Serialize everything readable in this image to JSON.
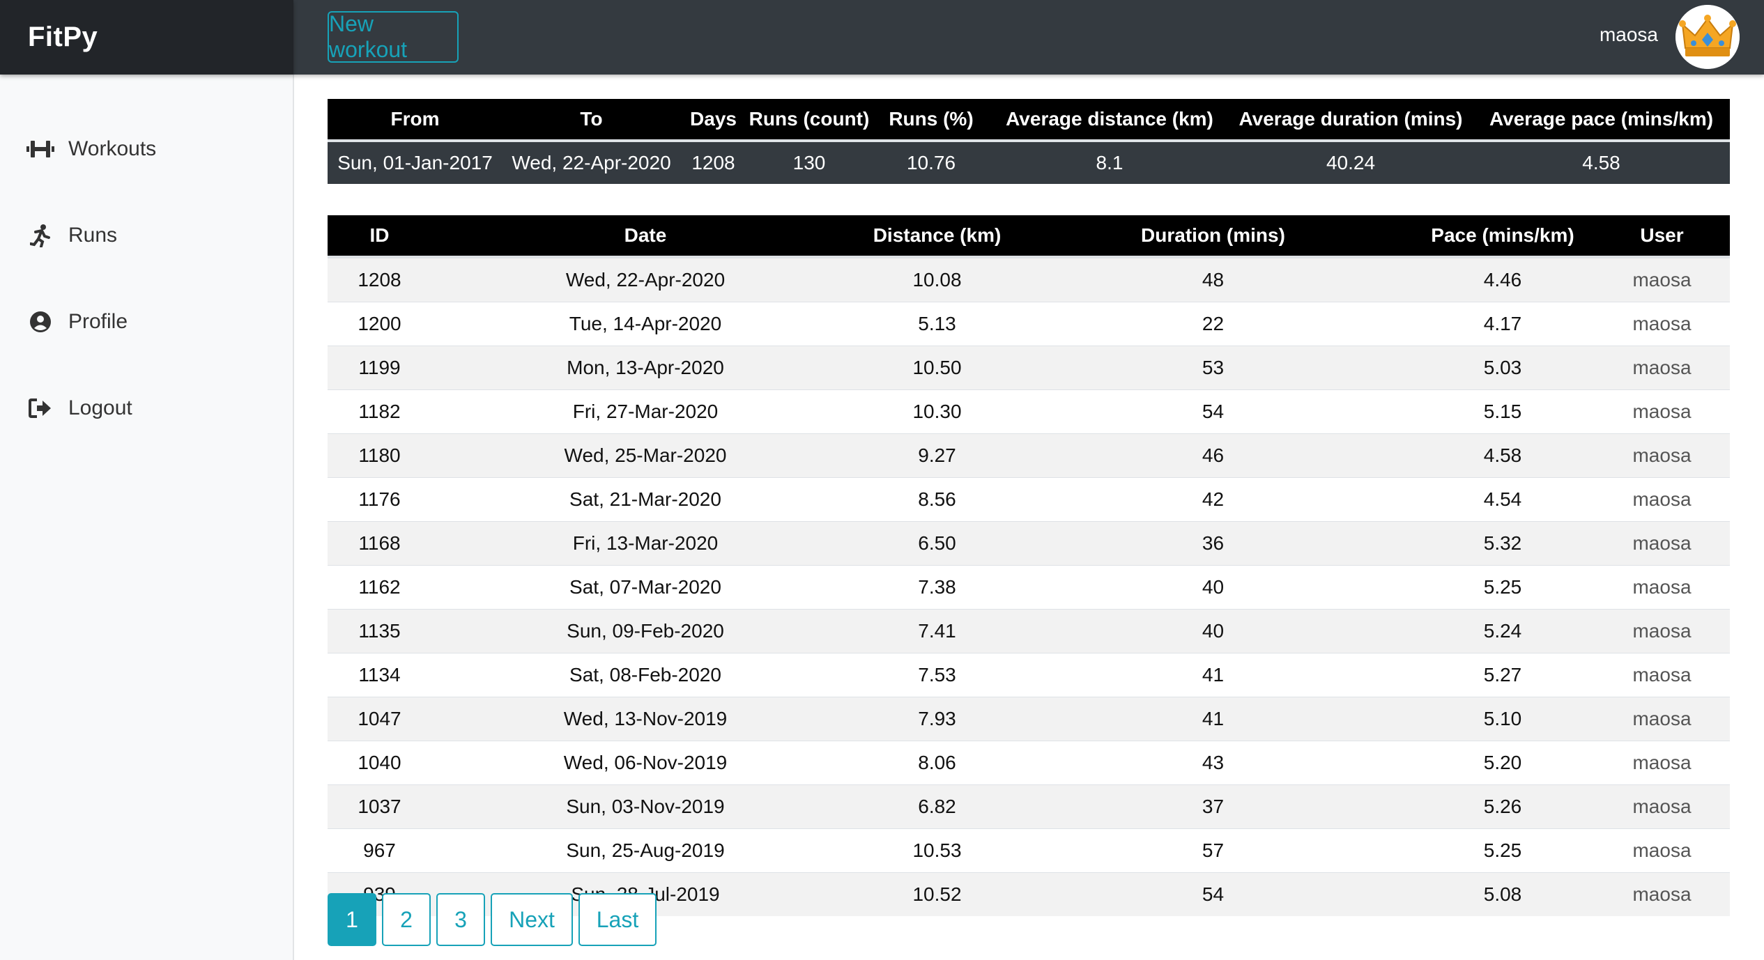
{
  "app": {
    "brand": "FitPy"
  },
  "topbar": {
    "new_workout_label": "New workout",
    "username": "maosa",
    "avatar_icon": "crown-avatar-icon"
  },
  "sidebar": {
    "items": [
      {
        "label": "Workouts",
        "icon": "dumbbell-icon"
      },
      {
        "label": "Runs",
        "icon": "running-icon"
      },
      {
        "label": "Profile",
        "icon": "user-circle-icon"
      },
      {
        "label": "Logout",
        "icon": "sign-out-icon"
      }
    ]
  },
  "summary": {
    "headers": [
      "From",
      "To",
      "Days",
      "Runs (count)",
      "Runs (%)",
      "Average distance (km)",
      "Average duration (mins)",
      "Average pace (mins/km)"
    ],
    "row": [
      "Sun, 01-Jan-2017",
      "Wed, 22-Apr-2020",
      "1208",
      "130",
      "10.76",
      "8.1",
      "40.24",
      "4.58"
    ]
  },
  "runs": {
    "headers": [
      "ID",
      "Date",
      "Distance (km)",
      "Duration (mins)",
      "Pace (mins/km)",
      "User"
    ],
    "rows": [
      [
        "1208",
        "Wed, 22-Apr-2020",
        "10.08",
        "48",
        "4.46",
        "maosa"
      ],
      [
        "1200",
        "Tue, 14-Apr-2020",
        "5.13",
        "22",
        "4.17",
        "maosa"
      ],
      [
        "1199",
        "Mon, 13-Apr-2020",
        "10.50",
        "53",
        "5.03",
        "maosa"
      ],
      [
        "1182",
        "Fri, 27-Mar-2020",
        "10.30",
        "54",
        "5.15",
        "maosa"
      ],
      [
        "1180",
        "Wed, 25-Mar-2020",
        "9.27",
        "46",
        "4.58",
        "maosa"
      ],
      [
        "1176",
        "Sat, 21-Mar-2020",
        "8.56",
        "42",
        "4.54",
        "maosa"
      ],
      [
        "1168",
        "Fri, 13-Mar-2020",
        "6.50",
        "36",
        "5.32",
        "maosa"
      ],
      [
        "1162",
        "Sat, 07-Mar-2020",
        "7.38",
        "40",
        "5.25",
        "maosa"
      ],
      [
        "1135",
        "Sun, 09-Feb-2020",
        "7.41",
        "40",
        "5.24",
        "maosa"
      ],
      [
        "1134",
        "Sat, 08-Feb-2020",
        "7.53",
        "41",
        "5.27",
        "maosa"
      ],
      [
        "1047",
        "Wed, 13-Nov-2019",
        "7.93",
        "41",
        "5.10",
        "maosa"
      ],
      [
        "1040",
        "Wed, 06-Nov-2019",
        "8.06",
        "43",
        "5.20",
        "maosa"
      ],
      [
        "1037",
        "Sun, 03-Nov-2019",
        "6.82",
        "37",
        "5.26",
        "maosa"
      ],
      [
        "967",
        "Sun, 25-Aug-2019",
        "10.53",
        "57",
        "5.25",
        "maosa"
      ],
      [
        "939",
        "Sun, 28-Jul-2019",
        "10.52",
        "54",
        "5.08",
        "maosa"
      ]
    ]
  },
  "pagination": {
    "buttons": [
      "1",
      "2",
      "3",
      "Next",
      "Last"
    ],
    "active": "1"
  },
  "colors": {
    "accent": "#17a2b8",
    "topbar": "#343a40",
    "brand_bar": "#222529"
  }
}
